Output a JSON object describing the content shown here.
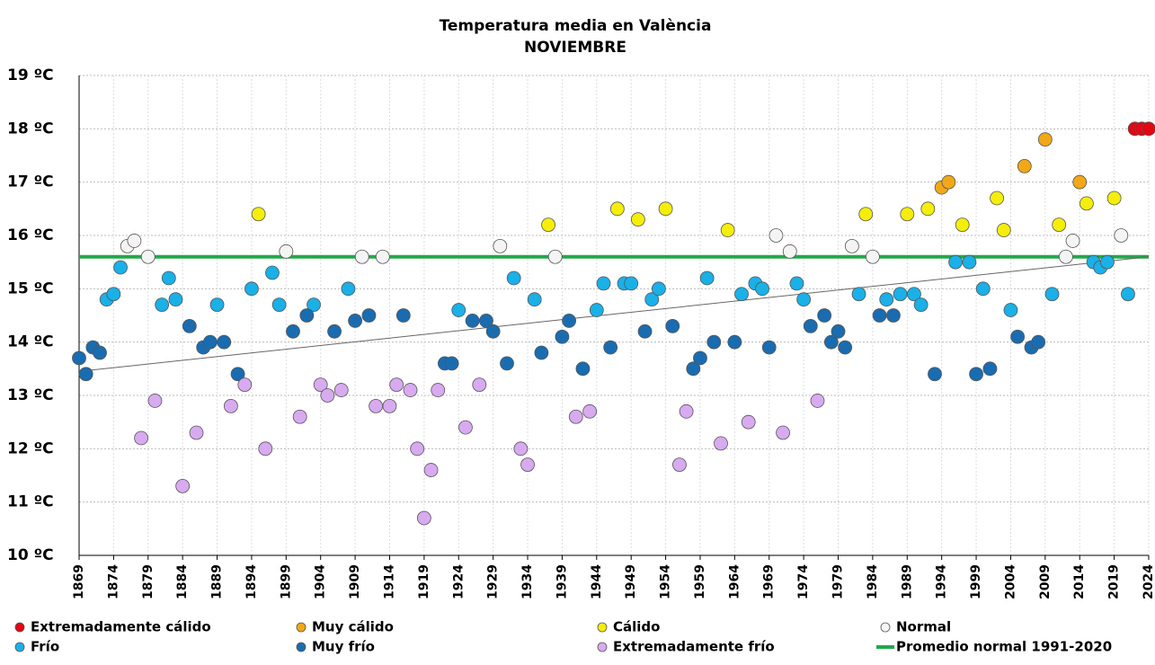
{
  "chart_data": {
    "type": "scatter",
    "title": "Temperatura media en València",
    "subtitle": "NOVIEMBRE",
    "xlim": [
      1869,
      2024
    ],
    "xticks": [
      1869,
      1874,
      1879,
      1884,
      1889,
      1894,
      1899,
      1904,
      1909,
      1914,
      1919,
      1924,
      1929,
      1934,
      1939,
      1944,
      1949,
      1954,
      1959,
      1964,
      1969,
      1974,
      1979,
      1984,
      1989,
      1994,
      1999,
      2004,
      2009,
      2014,
      2019,
      2024
    ],
    "ylim": [
      10,
      19
    ],
    "yticks": [
      {
        "value": 10,
        "label": "10 ºC"
      },
      {
        "value": 11,
        "label": "11 ºC"
      },
      {
        "value": 12,
        "label": "12 ºC"
      },
      {
        "value": 13,
        "label": "13 ºC"
      },
      {
        "value": 14,
        "label": "14 ºC"
      },
      {
        "value": 15,
        "label": "15 ºC"
      },
      {
        "value": 16,
        "label": "16 ºC"
      },
      {
        "value": 17,
        "label": "17 ºC"
      },
      {
        "value": 18,
        "label": "18 ºC"
      },
      {
        "value": 19,
        "label": "19 ºC"
      }
    ],
    "grid": true,
    "series": [
      {
        "name": "Extremadamente cálido",
        "color": "#e30613",
        "x": [
          2022,
          2023,
          2024
        ],
        "values": [
          18.0,
          18.0,
          18.0
        ]
      },
      {
        "name": "Muy cálido",
        "color": "#f0a818",
        "x": [
          1994,
          1995,
          2006,
          2009,
          2014
        ],
        "values": [
          16.9,
          17.0,
          17.3,
          17.8,
          17.0
        ]
      },
      {
        "name": "Cálido",
        "color": "#f5ee0a",
        "x": [
          1895,
          1937,
          1947,
          1950,
          1954,
          1963,
          1983,
          1989,
          1992,
          1997,
          2002,
          2003,
          2011,
          2015,
          2019
        ],
        "values": [
          16.4,
          16.2,
          16.5,
          16.3,
          16.5,
          16.1,
          16.4,
          16.4,
          16.5,
          16.2,
          16.7,
          16.1,
          16.2,
          16.6,
          16.7
        ]
      },
      {
        "name": "Normal",
        "color": "#f4f4f4",
        "x": [
          1876,
          1877,
          1879,
          1899,
          1910,
          1913,
          1930,
          1938,
          1970,
          1972,
          1981,
          1984,
          2012,
          2013,
          2020
        ],
        "values": [
          15.8,
          15.9,
          15.6,
          15.7,
          15.6,
          15.6,
          15.8,
          15.6,
          16.0,
          15.7,
          15.8,
          15.6,
          15.6,
          15.9,
          16.0
        ]
      },
      {
        "name": "Frío",
        "color": "#1ab0e8",
        "x": [
          1873,
          1874,
          1875,
          1881,
          1882,
          1883,
          1889,
          1894,
          1897,
          1898,
          1903,
          1908,
          1924,
          1932,
          1935,
          1944,
          1945,
          1948,
          1949,
          1952,
          1953,
          1960,
          1965,
          1967,
          1968,
          1973,
          1974,
          1982,
          1986,
          1988,
          1990,
          1991,
          1996,
          1998,
          2000,
          2004,
          2010,
          2016,
          2017,
          2018,
          2021
        ],
        "values": [
          14.8,
          14.9,
          15.4,
          14.7,
          15.2,
          14.8,
          14.7,
          15.0,
          15.3,
          14.7,
          14.7,
          15.0,
          14.6,
          15.2,
          14.8,
          14.6,
          15.1,
          15.1,
          15.1,
          14.8,
          15.0,
          15.2,
          14.9,
          15.1,
          15.0,
          15.1,
          14.8,
          14.9,
          14.8,
          14.9,
          14.9,
          14.7,
          15.5,
          15.5,
          15.0,
          14.6,
          14.9,
          15.5,
          15.4,
          15.5,
          14.9
        ]
      },
      {
        "name": "Muy frío",
        "color": "#1a6cb0",
        "x": [
          1869,
          1870,
          1871,
          1872,
          1885,
          1887,
          1888,
          1890,
          1892,
          1900,
          1902,
          1906,
          1909,
          1911,
          1916,
          1922,
          1923,
          1926,
          1928,
          1929,
          1931,
          1936,
          1939,
          1940,
          1942,
          1946,
          1951,
          1955,
          1958,
          1959,
          1961,
          1964,
          1969,
          1975,
          1977,
          1978,
          1979,
          1980,
          1985,
          1987,
          1993,
          1999,
          2001,
          2005,
          2007,
          2008
        ],
        "values": [
          13.7,
          13.4,
          13.9,
          13.8,
          14.3,
          13.9,
          14.0,
          14.0,
          13.4,
          14.2,
          14.5,
          14.2,
          14.4,
          14.5,
          14.5,
          13.6,
          13.6,
          14.4,
          14.4,
          14.2,
          13.6,
          13.8,
          14.1,
          14.4,
          13.5,
          13.9,
          14.2,
          14.3,
          13.5,
          13.7,
          14.0,
          14.0,
          13.9,
          14.3,
          14.5,
          14.0,
          14.2,
          13.9,
          14.5,
          14.5,
          13.4,
          13.4,
          13.5,
          14.1,
          13.9,
          14.0
        ]
      },
      {
        "name": "Extremadamente frío",
        "color": "#d8aaf0",
        "x": [
          1878,
          1880,
          1884,
          1886,
          1891,
          1893,
          1896,
          1901,
          1904,
          1905,
          1907,
          1912,
          1914,
          1915,
          1917,
          1918,
          1919,
          1920,
          1921,
          1925,
          1927,
          1933,
          1934,
          1941,
          1943,
          1956,
          1957,
          1962,
          1966,
          1971,
          1976
        ],
        "values": [
          12.2,
          12.9,
          11.3,
          12.3,
          12.8,
          13.2,
          12.0,
          12.6,
          13.2,
          13.0,
          13.1,
          12.8,
          12.8,
          13.2,
          13.1,
          12.0,
          10.7,
          11.6,
          13.1,
          12.4,
          13.2,
          12.0,
          11.7,
          12.6,
          12.7,
          11.7,
          12.7,
          12.1,
          12.5,
          12.3,
          12.9
        ]
      }
    ],
    "reference_line": {
      "name": "Promedio normal 1991-2020",
      "color": "#22a84a",
      "value": 15.6
    },
    "trend": {
      "color": "#666666",
      "x": [
        1869,
        2024
      ],
      "values": [
        13.45,
        15.6
      ]
    }
  }
}
